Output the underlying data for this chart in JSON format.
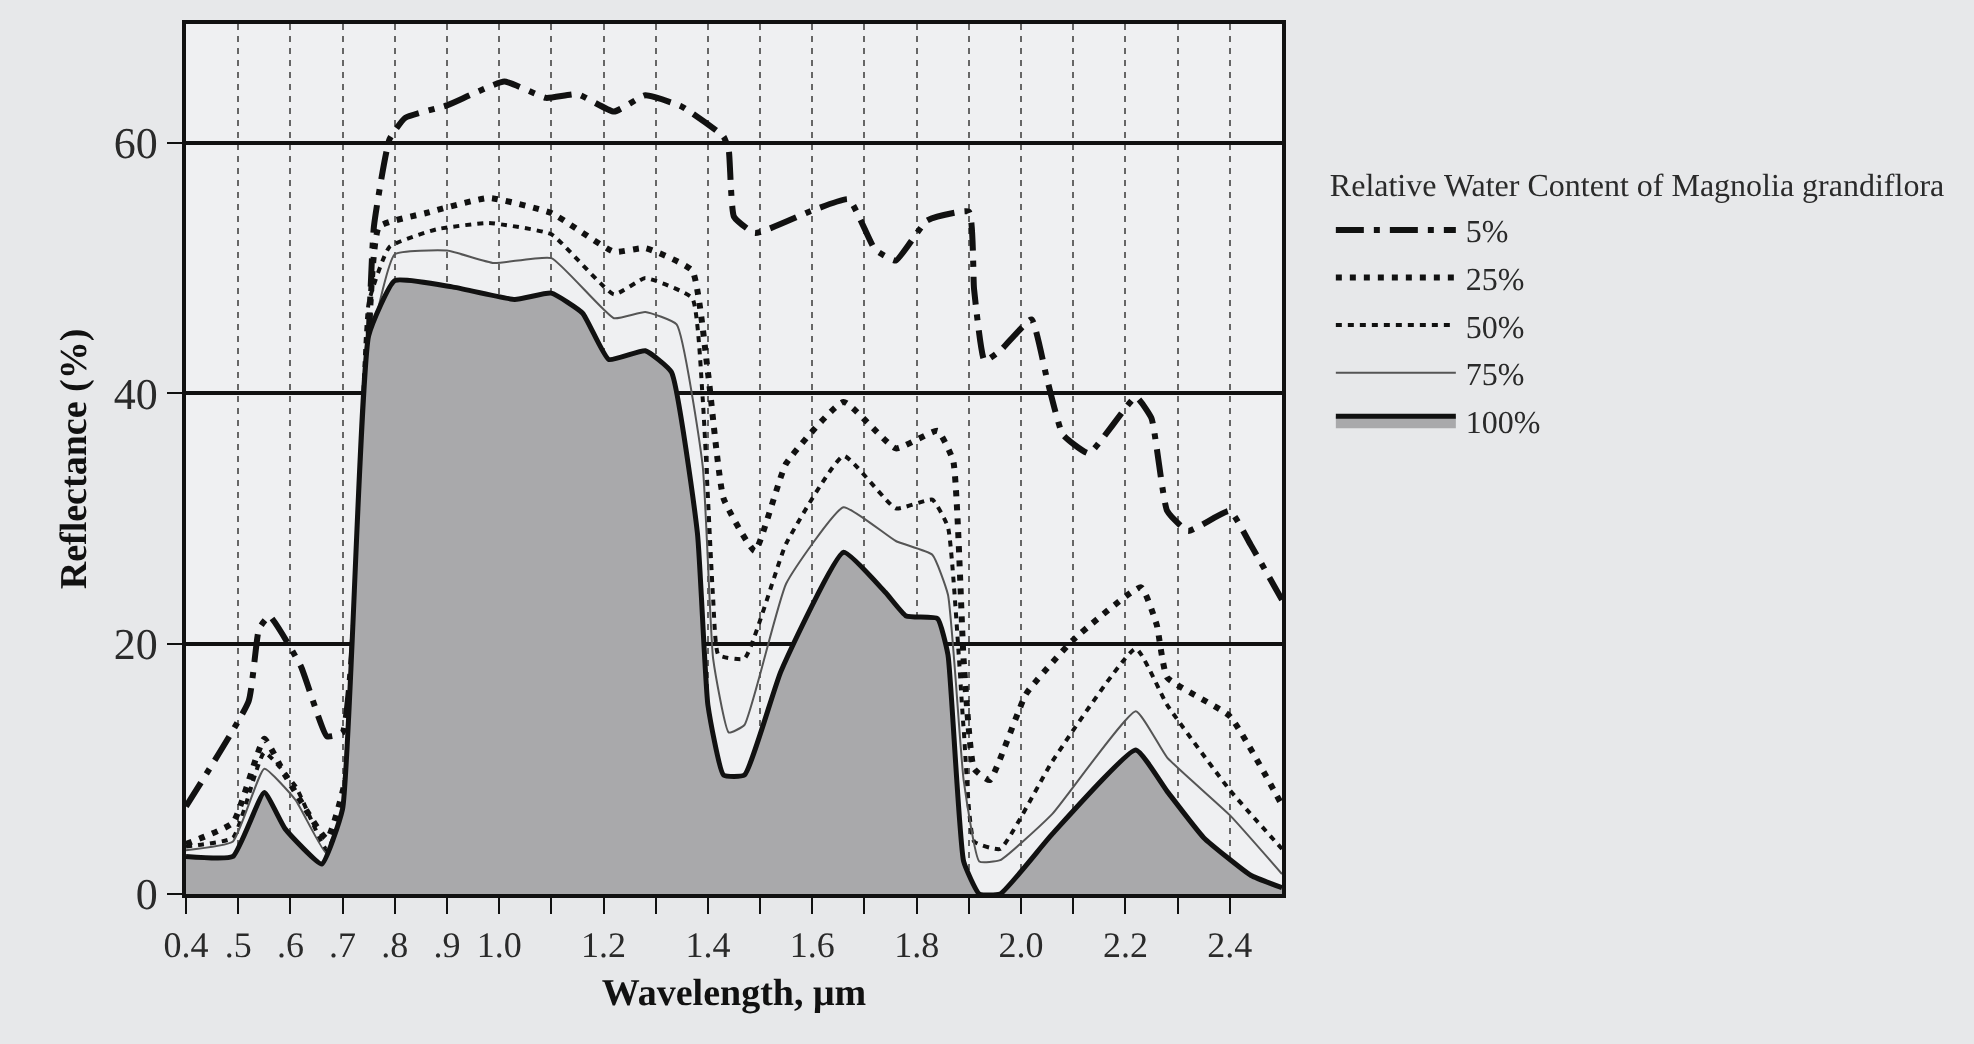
{
  "chart_data": {
    "type": "line",
    "xlabel": "Wavelength, μm",
    "ylabel": "Reflectance (%)",
    "legend_title": "Relative Water Content of Magnolia grandiflora",
    "legend": "right",
    "grid": true,
    "xlim": [
      0.4,
      2.5
    ],
    "ylim": [
      0,
      69.5
    ],
    "xticks": [
      0.4,
      {
        "value": 0.5,
        "label": ".5"
      },
      {
        "value": 0.6,
        "label": ".6"
      },
      {
        "value": 0.7,
        "label": ".7"
      },
      {
        "value": 0.8,
        "label": ".8"
      },
      {
        "value": 0.9,
        "label": ".9"
      },
      {
        "value": 1.0,
        "label": "1.0"
      },
      {
        "value": 1.1,
        "label": null
      },
      1.2,
      {
        "value": 1.3,
        "label": null
      },
      1.4,
      {
        "value": 1.5,
        "label": null
      },
      1.6,
      {
        "value": 1.7,
        "label": null
      },
      1.8,
      {
        "value": 1.9,
        "label": null
      },
      {
        "value": 2.0,
        "label": "2.0"
      },
      {
        "value": 2.1,
        "label": null
      },
      2.2,
      {
        "value": 2.3,
        "label": null
      },
      2.4
    ],
    "yticks": [
      0,
      20,
      40,
      60
    ],
    "series": [
      {
        "name": "5%",
        "color": "#111111",
        "line_style": "dashdot",
        "x": [
          0.4,
          0.52,
          0.54,
          0.56,
          0.62,
          0.67,
          0.7,
          0.74,
          0.76,
          0.79,
          0.82,
          0.9,
          1.01,
          1.09,
          1.15,
          1.22,
          1.28,
          1.35,
          1.43,
          1.44,
          1.45,
          1.49,
          1.6,
          1.67,
          1.72,
          1.76,
          1.82,
          1.9,
          1.91,
          1.93,
          1.96,
          2.02,
          2.05,
          2.08,
          2.13,
          2.22,
          2.25,
          2.28,
          2.32,
          2.4,
          2.44,
          2.5
        ],
        "values": [
          7,
          15.4,
          21.2,
          22.2,
          18.2,
          12.6,
          12.9,
          34,
          53.3,
          60.3,
          62,
          63,
          64.9,
          63.6,
          63.9,
          62.5,
          63.8,
          62.9,
          60.5,
          59.4,
          54.1,
          52.8,
          54.6,
          55.5,
          51.5,
          50.6,
          53.8,
          54.5,
          48.3,
          42.6,
          43.4,
          45.9,
          41.1,
          36.7,
          35.2,
          39.7,
          38,
          30.6,
          29,
          30.6,
          27.9,
          23.5
        ]
      },
      {
        "name": "25%",
        "color": "#111111",
        "line_style": "dashed",
        "x": [
          0.4,
          0.49,
          0.55,
          0.59,
          0.67,
          0.71,
          0.75,
          0.77,
          0.86,
          0.98,
          1.1,
          1.22,
          1.28,
          1.37,
          1.4,
          1.43,
          1.49,
          1.55,
          1.66,
          1.76,
          1.84,
          1.87,
          1.89,
          1.91,
          1.94,
          2.01,
          2.1,
          2.23,
          2.26,
          2.28,
          2.4,
          2.5
        ],
        "values": [
          4,
          5.7,
          12.4,
          9.5,
          4.4,
          10,
          44.6,
          53.3,
          54.4,
          55.6,
          54.4,
          51.3,
          51.6,
          49.8,
          41.7,
          31.6,
          27.4,
          34.4,
          39.3,
          35.6,
          37,
          34.6,
          18.7,
          10,
          9.1,
          16,
          20.3,
          24.5,
          21.5,
          17.3,
          14.2,
          7.1
        ]
      },
      {
        "name": "50%",
        "color": "#111111",
        "line_style": "dotted",
        "x": [
          0.4,
          0.49,
          0.55,
          0.61,
          0.67,
          0.71,
          0.75,
          0.79,
          0.88,
          0.98,
          1.1,
          1.22,
          1.28,
          1.37,
          1.39,
          1.41,
          1.42,
          1.47,
          1.55,
          1.66,
          1.76,
          1.83,
          1.86,
          1.89,
          1.91,
          1.96,
          2.06,
          2.22,
          2.28,
          2.4,
          2.5
        ],
        "values": [
          3.8,
          4.5,
          11.3,
          8.6,
          3.5,
          8,
          47.2,
          51.7,
          53.1,
          53.6,
          52.7,
          47.9,
          49.2,
          47.6,
          39.6,
          23.6,
          19.1,
          18.8,
          28,
          35,
          30.8,
          31.5,
          29.3,
          13.2,
          4.2,
          3.6,
          10.6,
          19.6,
          15.1,
          8.3,
          3.6
        ]
      },
      {
        "name": "75%",
        "color": "#555555",
        "line_style": "solid",
        "x": [
          0.4,
          0.49,
          0.55,
          0.61,
          0.67,
          0.71,
          0.76,
          0.8,
          0.9,
          0.99,
          1.1,
          1.22,
          1.28,
          1.34,
          1.39,
          1.41,
          1.44,
          1.47,
          1.55,
          1.66,
          1.76,
          1.83,
          1.86,
          1.89,
          1.92,
          1.96,
          2.06,
          2.22,
          2.28,
          2.4,
          2.5
        ],
        "values": [
          3.5,
          4.2,
          10,
          7.5,
          3.2,
          7.5,
          45,
          51.1,
          51.4,
          50.4,
          50.8,
          46,
          46.5,
          45.5,
          34.2,
          18.8,
          12.9,
          13.5,
          24.8,
          30.9,
          28.2,
          27.1,
          23.9,
          9.1,
          2.6,
          2.7,
          6.4,
          14.6,
          10.9,
          6.3,
          1.6
        ]
      },
      {
        "name": "100%",
        "type": "area",
        "color": "#111111",
        "line_style": "solid",
        "x": [
          0.4,
          0.49,
          0.55,
          0.59,
          0.66,
          0.7,
          0.75,
          0.8,
          0.91,
          1.03,
          1.1,
          1.16,
          1.21,
          1.28,
          1.33,
          1.38,
          1.4,
          1.43,
          1.47,
          1.54,
          1.66,
          1.74,
          1.78,
          1.84,
          1.86,
          1.89,
          1.92,
          1.96,
          2.06,
          2.22,
          2.28,
          2.35,
          2.44,
          2.5
        ],
        "values": [
          3,
          3,
          8.1,
          5.2,
          2.4,
          6.8,
          44.6,
          49,
          48.5,
          47.5,
          48,
          46.4,
          42.7,
          43.4,
          41.7,
          28.8,
          15.1,
          9.5,
          9.5,
          17.8,
          27.3,
          24.1,
          22.2,
          22,
          19.1,
          2.6,
          0,
          0,
          4.8,
          11.5,
          8.2,
          4.5,
          1.5,
          0.5
        ]
      }
    ]
  }
}
